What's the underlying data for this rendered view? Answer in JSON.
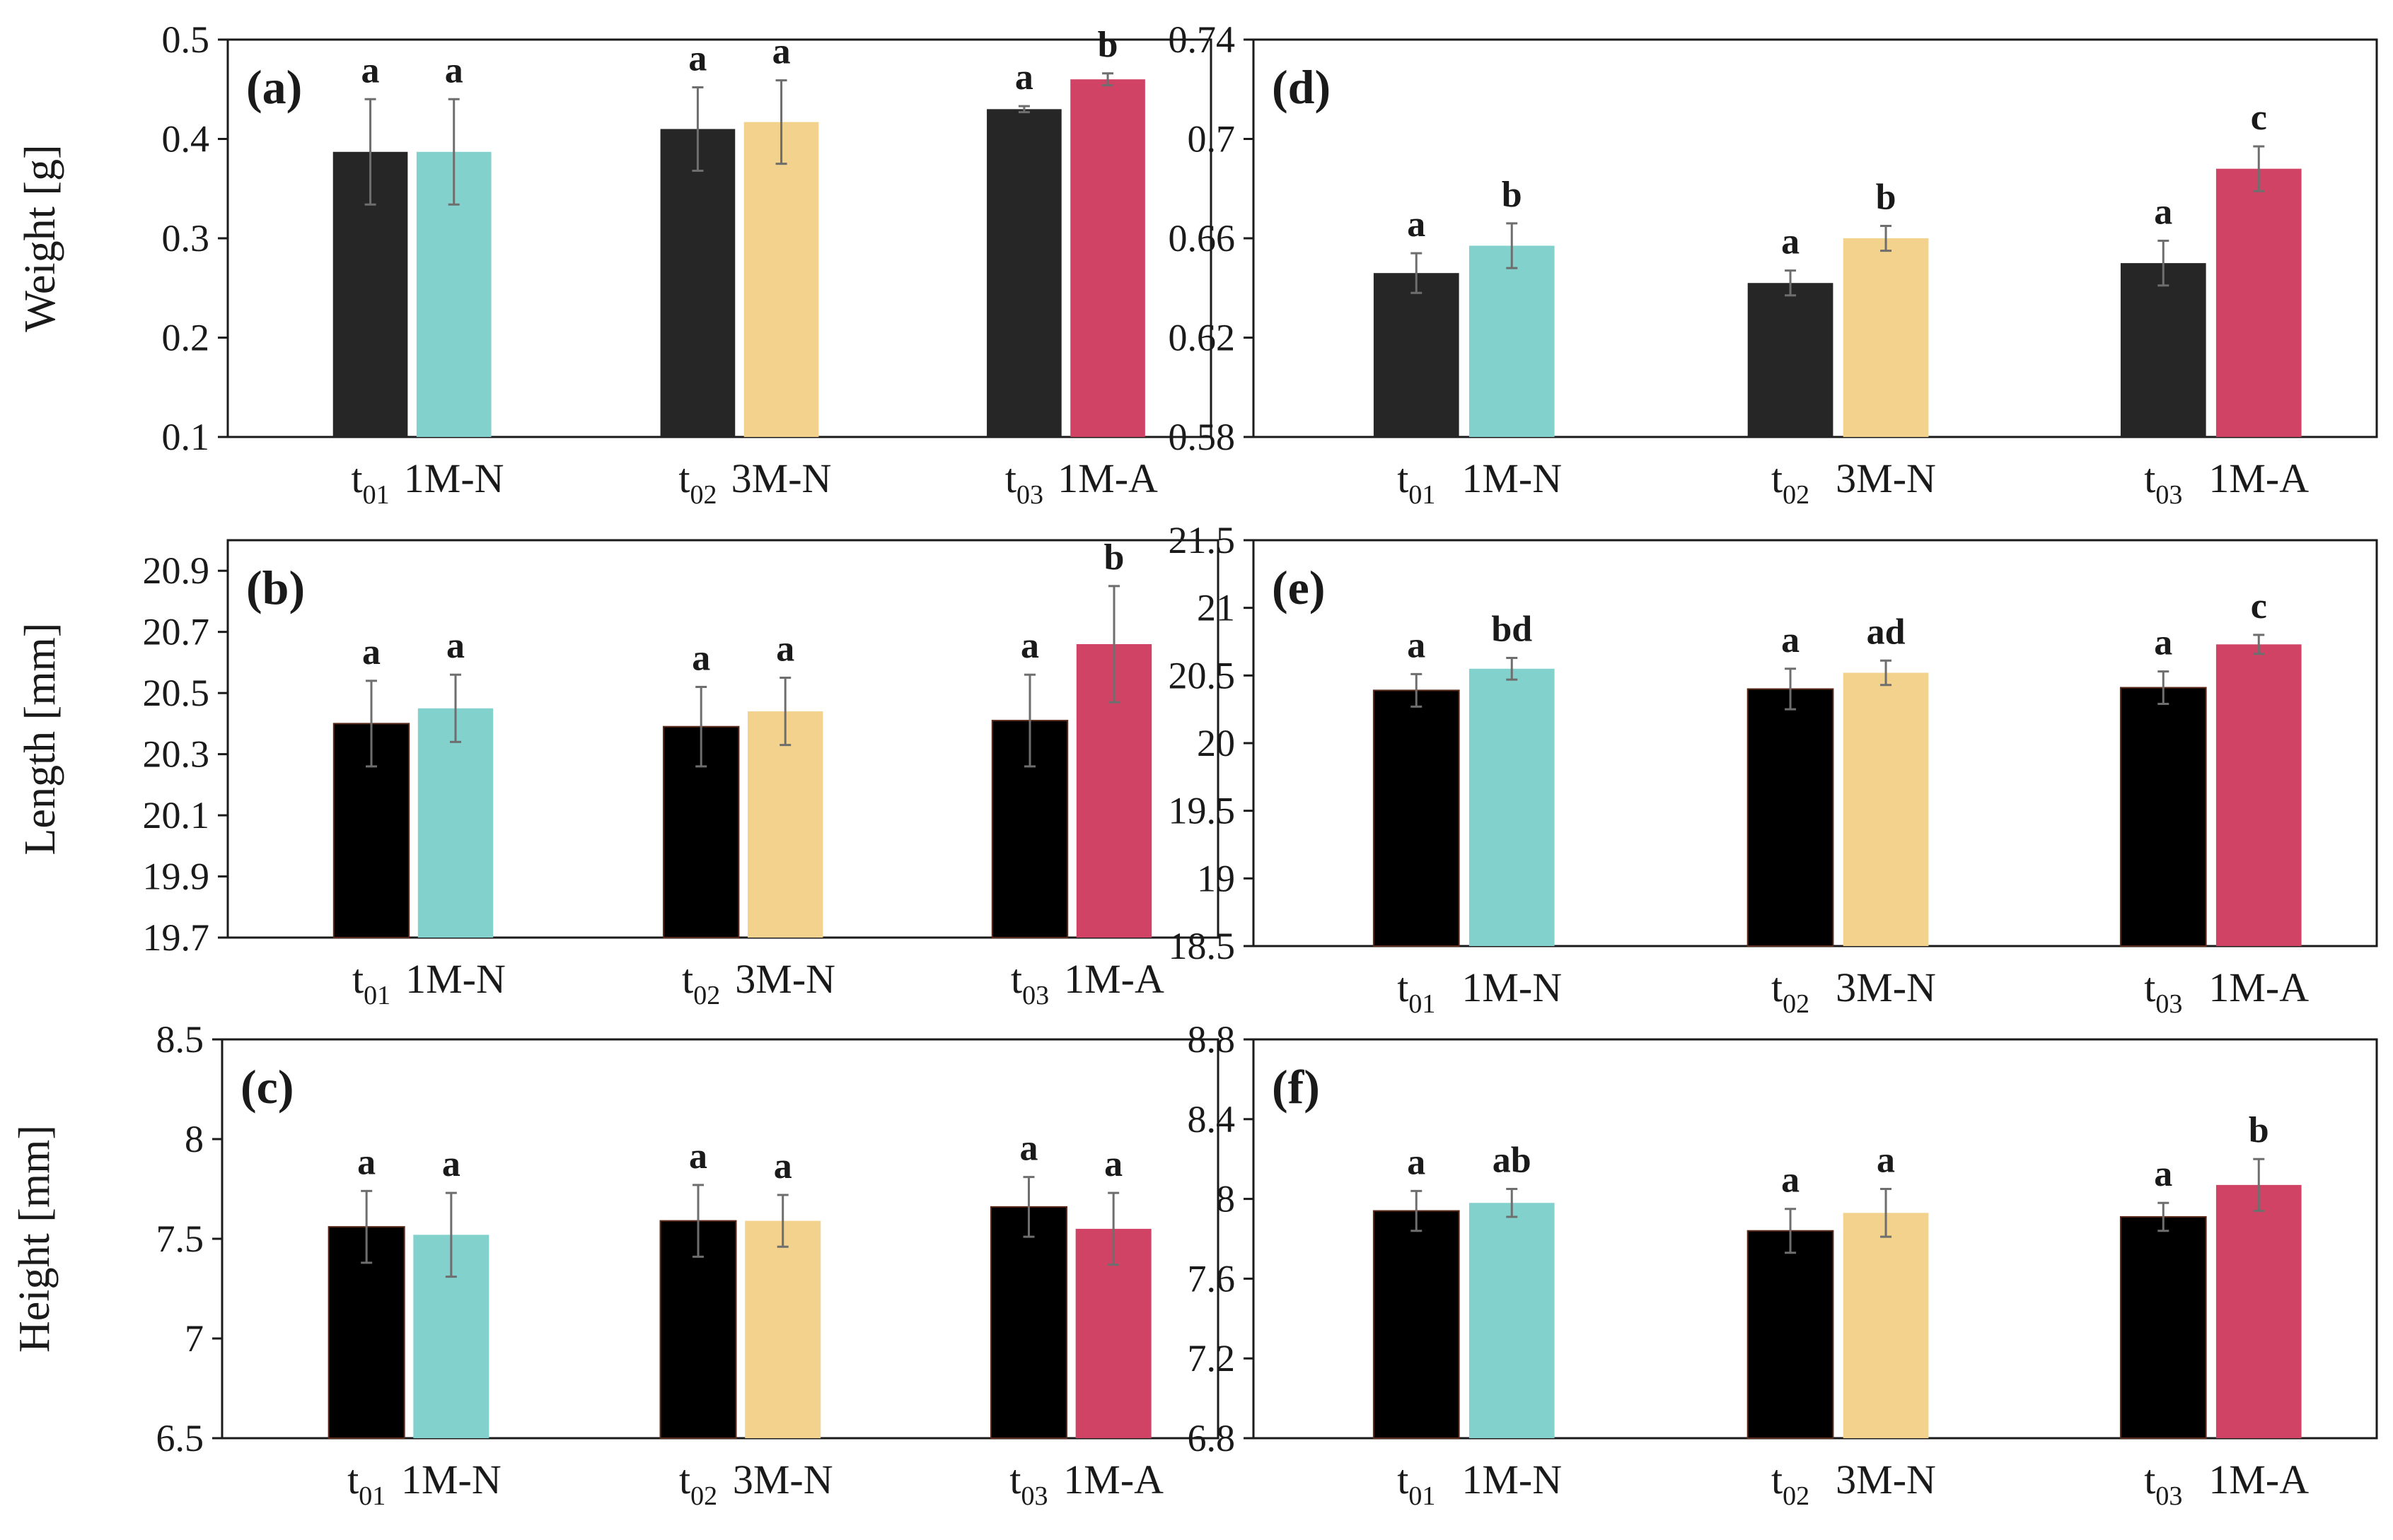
{
  "figure": {
    "description_labels": "six bar-chart panels (a)-(f)"
  },
  "chart_data": [
    {
      "id": "a",
      "type": "bar",
      "panel_label": "(a)",
      "ylabel": "Weight [g]",
      "ylim": [
        0.1,
        0.5
      ],
      "yticks": [
        "0.1",
        "0.2",
        "0.3",
        "0.4",
        "0.5"
      ],
      "groups": [
        {
          "bars": [
            {
              "label_main": "t",
              "label_sub": "01",
              "value": 0.387,
              "err": 0.053,
              "sig": "a",
              "color": "#262626"
            },
            {
              "label_main": "1M-N",
              "label_sub": "",
              "value": 0.387,
              "err": 0.053,
              "sig": "a",
              "color": "#82d1cc"
            }
          ]
        },
        {
          "bars": [
            {
              "label_main": "t",
              "label_sub": "02",
              "value": 0.41,
              "err": 0.042,
              "sig": "a",
              "color": "#262626"
            },
            {
              "label_main": "3M-N",
              "label_sub": "",
              "value": 0.417,
              "err": 0.042,
              "sig": "a",
              "color": "#f2d28c"
            }
          ]
        },
        {
          "bars": [
            {
              "label_main": "t",
              "label_sub": "03",
              "value": 0.43,
              "err": 0.003,
              "sig": "a",
              "color": "#262626"
            },
            {
              "label_main": "1M-A",
              "label_sub": "",
              "value": 0.46,
              "err": 0.006,
              "sig": "b",
              "color": "#d14365"
            }
          ]
        }
      ]
    },
    {
      "id": "d",
      "type": "bar",
      "panel_label": "(d)",
      "ylabel": "",
      "ylim": [
        0.58,
        0.74
      ],
      "yticks": [
        "0.58",
        "0.62",
        "0.66",
        "0.7",
        "0.74"
      ],
      "groups": [
        {
          "bars": [
            {
              "label_main": "t",
              "label_sub": "01",
              "value": 0.646,
              "err": 0.008,
              "sig": "a",
              "color": "#262626"
            },
            {
              "label_main": "1M-N",
              "label_sub": "",
              "value": 0.657,
              "err": 0.009,
              "sig": "b",
              "color": "#82d1cc"
            }
          ]
        },
        {
          "bars": [
            {
              "label_main": "t",
              "label_sub": "02",
              "value": 0.642,
              "err": 0.005,
              "sig": "a",
              "color": "#262626"
            },
            {
              "label_main": "3M-N",
              "label_sub": "",
              "value": 0.66,
              "err": 0.005,
              "sig": "b",
              "color": "#f2d28c"
            }
          ]
        },
        {
          "bars": [
            {
              "label_main": "t",
              "label_sub": "03",
              "value": 0.65,
              "err": 0.009,
              "sig": "a",
              "color": "#262626"
            },
            {
              "label_main": "1M-A",
              "label_sub": "",
              "value": 0.688,
              "err": 0.009,
              "sig": "c",
              "color": "#d14365"
            }
          ]
        }
      ]
    },
    {
      "id": "b",
      "type": "bar",
      "panel_label": "(b)",
      "ylabel": "Length [mm]",
      "ylim": [
        19.7,
        21.0
      ],
      "yticks": [
        "19.7",
        "19.9",
        "20.1",
        "20.3",
        "20.5",
        "20.7",
        "20.9"
      ],
      "groups": [
        {
          "bars": [
            {
              "label_main": "t",
              "label_sub": "01",
              "value": 20.4,
              "err": 0.14,
              "sig": "a",
              "color": "#000000"
            },
            {
              "label_main": "1M-N",
              "label_sub": "",
              "value": 20.45,
              "err": 0.11,
              "sig": "a",
              "color": "#82d1cc"
            }
          ]
        },
        {
          "bars": [
            {
              "label_main": "t",
              "label_sub": "02",
              "value": 20.39,
              "err": 0.13,
              "sig": "a",
              "color": "#000000"
            },
            {
              "label_main": "3M-N",
              "label_sub": "",
              "value": 20.44,
              "err": 0.11,
              "sig": "a",
              "color": "#f2d28c"
            }
          ]
        },
        {
          "bars": [
            {
              "label_main": "t",
              "label_sub": "03",
              "value": 20.41,
              "err": 0.15,
              "sig": "a",
              "color": "#000000"
            },
            {
              "label_main": "1M-A",
              "label_sub": "",
              "value": 20.66,
              "err": 0.19,
              "sig": "b",
              "color": "#d14365"
            }
          ]
        }
      ]
    },
    {
      "id": "e",
      "type": "bar",
      "panel_label": "(e)",
      "ylabel": "",
      "ylim": [
        18.5,
        21.5
      ],
      "yticks": [
        "18.5",
        "19",
        "19.5",
        "20",
        "20.5",
        "21",
        "21.5"
      ],
      "groups": [
        {
          "bars": [
            {
              "label_main": "t",
              "label_sub": "01",
              "value": 20.39,
              "err": 0.12,
              "sig": "a",
              "color": "#000000"
            },
            {
              "label_main": "1M-N",
              "label_sub": "",
              "value": 20.55,
              "err": 0.08,
              "sig": "bd",
              "color": "#82d1cc"
            }
          ]
        },
        {
          "bars": [
            {
              "label_main": "t",
              "label_sub": "02",
              "value": 20.4,
              "err": 0.15,
              "sig": "a",
              "color": "#000000"
            },
            {
              "label_main": "3M-N",
              "label_sub": "",
              "value": 20.52,
              "err": 0.09,
              "sig": "ad",
              "color": "#f2d28c"
            }
          ]
        },
        {
          "bars": [
            {
              "label_main": "t",
              "label_sub": "03",
              "value": 20.41,
              "err": 0.12,
              "sig": "a",
              "color": "#000000"
            },
            {
              "label_main": "1M-A",
              "label_sub": "",
              "value": 20.73,
              "err": 0.07,
              "sig": "c",
              "color": "#d14365"
            }
          ]
        }
      ]
    },
    {
      "id": "c",
      "type": "bar",
      "panel_label": "(c)",
      "ylabel": "Height [mm]",
      "ylim": [
        6.5,
        8.5
      ],
      "yticks": [
        "6.5",
        "7",
        "7.5",
        "8",
        "8.5"
      ],
      "groups": [
        {
          "bars": [
            {
              "label_main": "t",
              "label_sub": "01",
              "value": 7.56,
              "err": 0.18,
              "sig": "a",
              "color": "#000000"
            },
            {
              "label_main": "1M-N",
              "label_sub": "",
              "value": 7.52,
              "err": 0.21,
              "sig": "a",
              "color": "#82d1cc"
            }
          ]
        },
        {
          "bars": [
            {
              "label_main": "t",
              "label_sub": "02",
              "value": 7.59,
              "err": 0.18,
              "sig": "a",
              "color": "#000000"
            },
            {
              "label_main": "3M-N",
              "label_sub": "",
              "value": 7.59,
              "err": 0.13,
              "sig": "a",
              "color": "#f2d28c"
            }
          ]
        },
        {
          "bars": [
            {
              "label_main": "t",
              "label_sub": "03",
              "value": 7.66,
              "err": 0.15,
              "sig": "a",
              "color": "#000000"
            },
            {
              "label_main": "1M-A",
              "label_sub": "",
              "value": 7.55,
              "err": 0.18,
              "sig": "a",
              "color": "#d14365"
            }
          ]
        }
      ]
    },
    {
      "id": "f",
      "type": "bar",
      "panel_label": "(f)",
      "ylabel": "",
      "ylim": [
        6.8,
        8.8
      ],
      "yticks": [
        "6.8",
        "7.2",
        "7.6",
        "8",
        "8.4",
        "8.8"
      ],
      "groups": [
        {
          "bars": [
            {
              "label_main": "t",
              "label_sub": "01",
              "value": 7.94,
              "err": 0.1,
              "sig": "a",
              "color": "#000000"
            },
            {
              "label_main": "1M-N",
              "label_sub": "",
              "value": 7.98,
              "err": 0.07,
              "sig": "ab",
              "color": "#82d1cc"
            }
          ]
        },
        {
          "bars": [
            {
              "label_main": "t",
              "label_sub": "02",
              "value": 7.84,
              "err": 0.11,
              "sig": "a",
              "color": "#000000"
            },
            {
              "label_main": "3M-N",
              "label_sub": "",
              "value": 7.93,
              "err": 0.12,
              "sig": "a",
              "color": "#f2d28c"
            }
          ]
        },
        {
          "bars": [
            {
              "label_main": "t",
              "label_sub": "03",
              "value": 7.91,
              "err": 0.07,
              "sig": "a",
              "color": "#000000"
            },
            {
              "label_main": "1M-A",
              "label_sub": "",
              "value": 8.07,
              "err": 0.13,
              "sig": "b",
              "color": "#d14365"
            }
          ]
        }
      ]
    }
  ]
}
